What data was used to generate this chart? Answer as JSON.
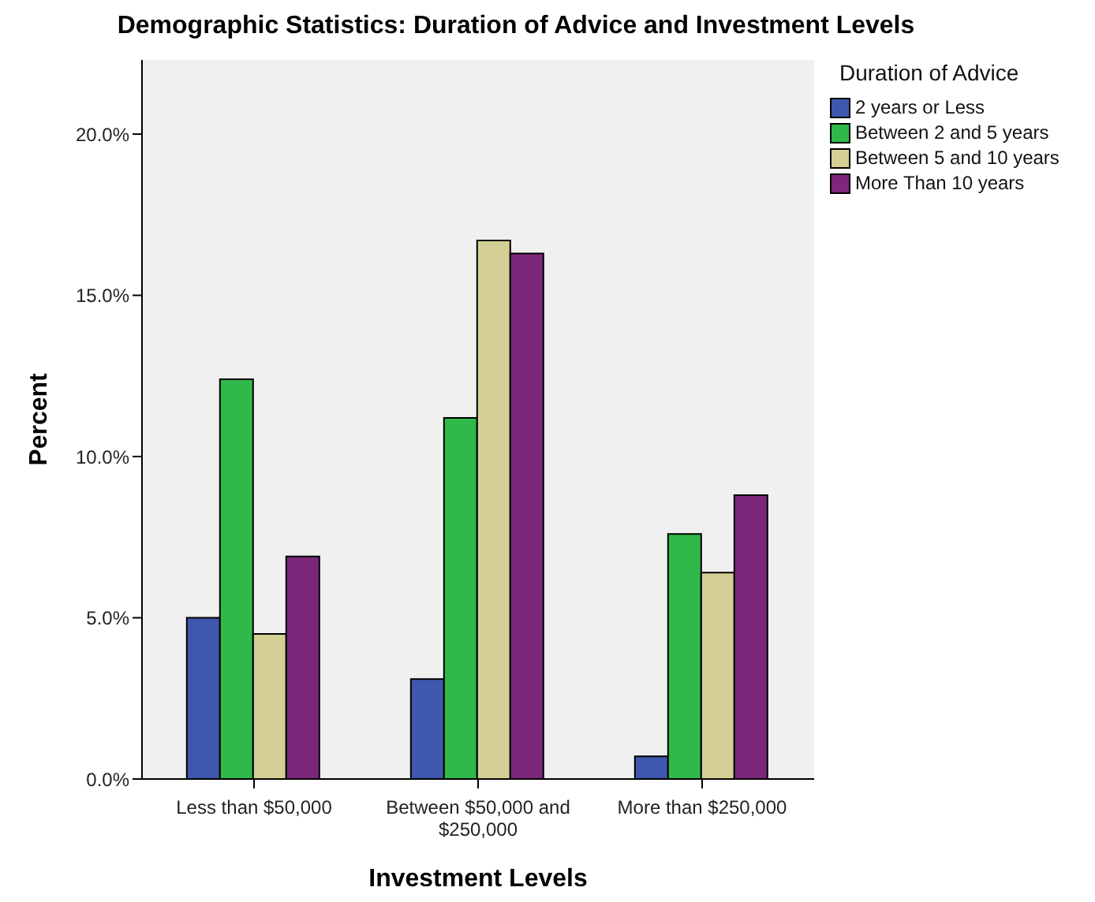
{
  "chart_data": {
    "type": "bar",
    "title": "Demographic Statistics: Duration of Advice and Investment Levels",
    "xlabel": "Investment Levels",
    "ylabel": "Percent",
    "legend_title": "Duration of Advice",
    "categories": [
      "Less than $50,000",
      "Between $50,000 and $250,000",
      "More than $250,000"
    ],
    "series": [
      {
        "name": "2 years or Less",
        "color": "#3f58ad",
        "values": [
          5.0,
          3.1,
          0.7
        ]
      },
      {
        "name": "Between 2 and 5 years",
        "color": "#31b84a",
        "values": [
          12.4,
          11.2,
          7.6
        ]
      },
      {
        "name": "Between 5 and 10 years",
        "color": "#d4cf95",
        "values": [
          4.5,
          16.7,
          6.4
        ]
      },
      {
        "name": "More Than 10 years",
        "color": "#7d277b",
        "values": [
          6.9,
          16.3,
          8.8
        ]
      }
    ],
    "ylim": [
      0,
      22.3
    ],
    "yticks": [
      {
        "value": 0,
        "label": "0.0%"
      },
      {
        "value": 5,
        "label": "5.0%"
      },
      {
        "value": 10,
        "label": "10.0%"
      },
      {
        "value": 15,
        "label": "15.0%"
      },
      {
        "value": 20,
        "label": "20.0%"
      }
    ],
    "grid": false,
    "legend": "top right"
  }
}
